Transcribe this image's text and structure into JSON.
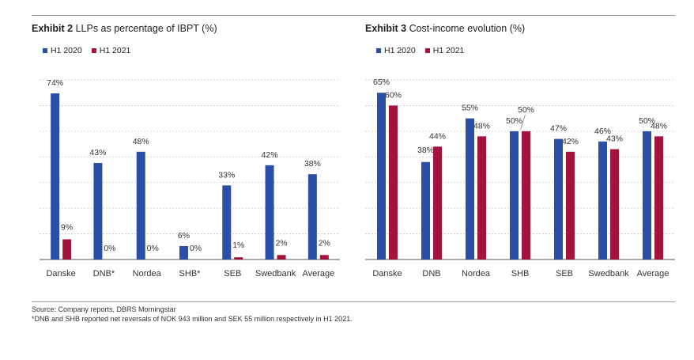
{
  "chart_data": [
    {
      "type": "bar",
      "title_prefix": "Exhibit 2",
      "title": "LLPs as percentage of IBPT (%)",
      "categories": [
        "Danske",
        "DNB*",
        "Nordea",
        "SHB*",
        "SEB",
        "Swedbank",
        "Average"
      ],
      "series": [
        {
          "name": "H1 2020",
          "color": "#2a4fa8",
          "values": [
            74,
            43,
            48,
            6,
            33,
            42,
            38
          ],
          "labels": [
            "74%",
            "43%",
            "48%",
            "6%",
            "33%",
            "42%",
            "38%"
          ]
        },
        {
          "name": "H1 2021",
          "color": "#a3143c",
          "values": [
            9,
            0,
            0,
            0,
            1,
            2,
            2
          ],
          "labels": [
            "9%",
            "0%",
            "0%",
            "0%",
            "1%",
            "2%",
            "2%"
          ]
        }
      ],
      "xlabel": "",
      "ylabel": "",
      "ylim": [
        0,
        80
      ],
      "grid": true,
      "legend": "top-left"
    },
    {
      "type": "bar",
      "title_prefix": "Exhibit 3",
      "title": "Cost-income evolution (%)",
      "categories": [
        "Danske",
        "DNB",
        "Nordea",
        "SHB",
        "SEB",
        "Swedbank",
        "Average"
      ],
      "series": [
        {
          "name": "H1 2020",
          "color": "#2a4fa8",
          "values": [
            65,
            38,
            55,
            50,
            47,
            46,
            50
          ],
          "labels": [
            "65%",
            "38%",
            "55%",
            "50%",
            "47%",
            "46%",
            "50%"
          ]
        },
        {
          "name": "H1 2021",
          "color": "#a3143c",
          "values": [
            60,
            44,
            48,
            50,
            42,
            43,
            48
          ],
          "labels": [
            "60%",
            "44%",
            "48%",
            "50%",
            "42%",
            "43%",
            "48%"
          ]
        }
      ],
      "xlabel": "",
      "ylabel": "",
      "ylim": [
        0,
        70
      ],
      "grid": true,
      "legend": "top-left"
    }
  ],
  "footnotes": {
    "source": "Source: Company reports, DBRS Morningstar",
    "note": "*DNB and SHB reported net reversals of NOK 943 million and SEK 55 million respectively in H1 2021."
  }
}
